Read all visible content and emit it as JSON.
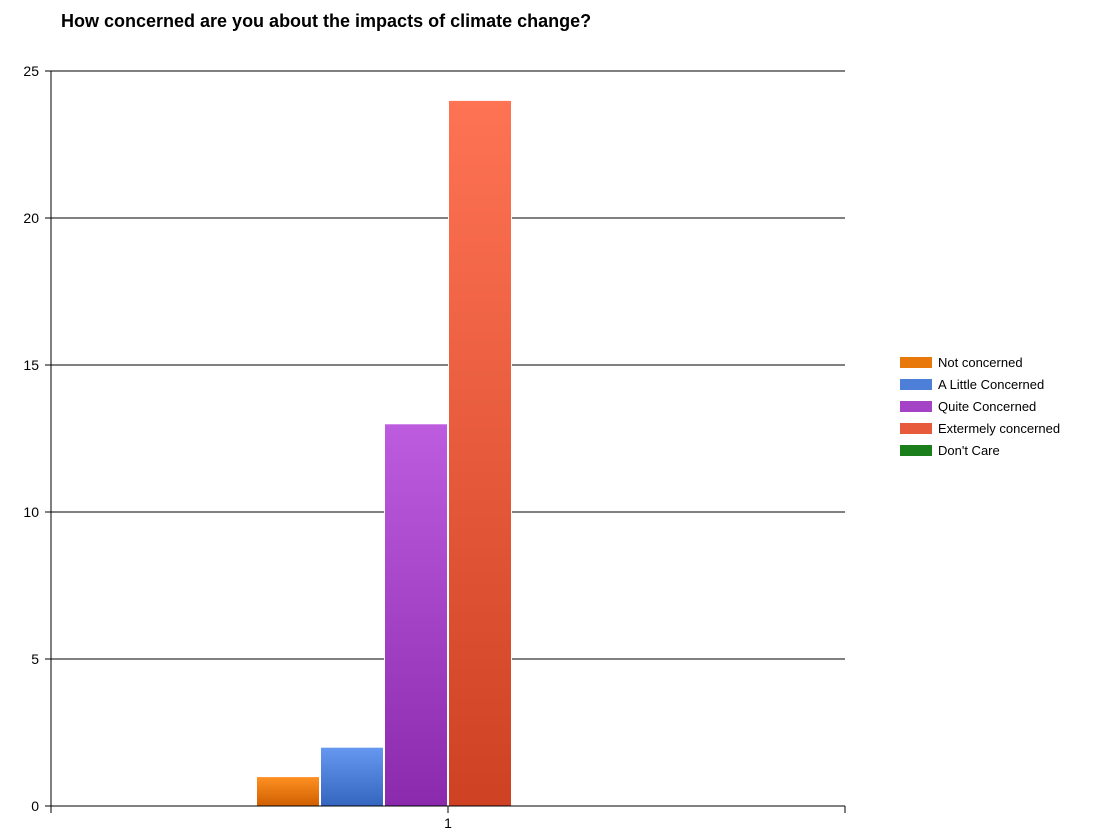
{
  "chart_data": {
    "type": "bar",
    "title": "How concerned are you about the impacts of climate change?",
    "xlabel": "",
    "ylabel": "",
    "categories": [
      "1"
    ],
    "series": [
      {
        "name": "Not concerned",
        "values": [
          1
        ],
        "color": "#e8780a"
      },
      {
        "name": "A Little Concerned",
        "values": [
          2
        ],
        "color": "#4e7fd8"
      },
      {
        "name": "Quite Concerned",
        "values": [
          13
        ],
        "color": "#a443c6"
      },
      {
        "name": "Extermely concerned",
        "values": [
          24
        ],
        "color": "#e85a3c"
      },
      {
        "name": "Don't Care",
        "values": [
          0
        ],
        "color": "#1a7f1a"
      }
    ],
    "ylim": [
      0,
      25
    ],
    "yticks": [
      "0",
      "5",
      "10",
      "15",
      "20",
      "25"
    ],
    "grid": true,
    "legend_position": "right"
  }
}
